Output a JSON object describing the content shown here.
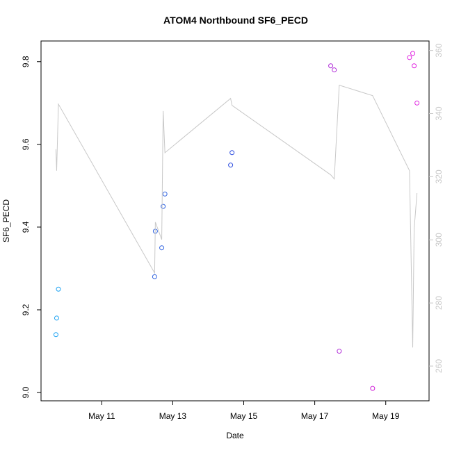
{
  "chart_data": {
    "type": "scatter",
    "title": "ATOM4 Northbound SF6_PECD",
    "xlabel": "Date",
    "ylabel": "SF6_PECD",
    "x": [
      9.71,
      9.73,
      9.78,
      12.49,
      12.51,
      12.69,
      12.73,
      12.78,
      14.63,
      14.67,
      17.45,
      17.55,
      17.69,
      18.63,
      19.67,
      19.76,
      19.8,
      19.88
    ],
    "series": [
      {
        "type": "scatter",
        "values": [
          9.14,
          9.18,
          9.25,
          9.28,
          9.39,
          9.35,
          9.45,
          9.48,
          9.55,
          9.58,
          9.79,
          9.78,
          9.1,
          9.01,
          9.81,
          9.82,
          9.79,
          9.7
        ],
        "colors": [
          "#1ea3f2",
          "#1ea3f2",
          "#1ea3f2",
          "#2f62e0",
          "#2f62e0",
          "#2f62e0",
          "#2f62e0",
          "#2f62e0",
          "#2f4fe0",
          "#2f4fe0",
          "#b02ad8",
          "#b02ad8",
          "#b02ad8",
          "#d020d8",
          "#e020e0",
          "#e020e0",
          "#e020e0",
          "#e020e0"
        ]
      },
      {
        "type": "line",
        "axis": "y2",
        "color": "#c8c8c8",
        "values": [
          328.7,
          321.9,
          343.0,
          289.5,
          305.6,
          300.1,
          340.8,
          327.6,
          344.8,
          342.6,
          320.6,
          319.3,
          349.0,
          345.7,
          321.9,
          265.9,
          303.4,
          314.8
        ]
      }
    ],
    "xlim": [
      9.29,
      20.22
    ],
    "xticks": [
      {
        "value": 11,
        "label": "May 11"
      },
      {
        "value": 13,
        "label": "May 13"
      },
      {
        "value": 15,
        "label": "May 15"
      },
      {
        "value": 17,
        "label": "May 17"
      },
      {
        "value": 19,
        "label": "May 19"
      }
    ],
    "ylim": [
      8.98,
      9.85
    ],
    "yticks": [
      {
        "value": 9,
        "label": "9.0"
      },
      9.2,
      9.4,
      9.6,
      9.8
    ],
    "y2lim": [
      249,
      363
    ],
    "y2ticks": [
      260,
      280,
      300,
      320,
      340,
      360
    ],
    "y2color": "#c8c8c8"
  }
}
